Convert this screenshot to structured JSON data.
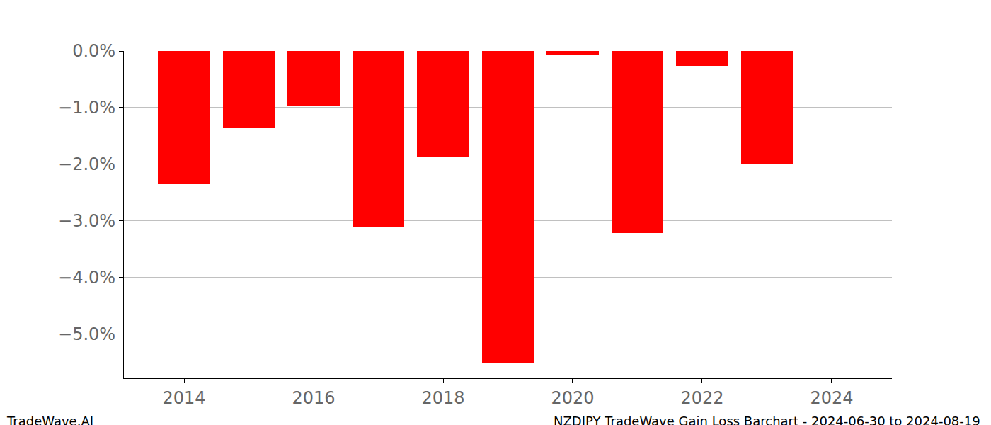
{
  "chart_data": {
    "type": "bar",
    "x": [
      2014,
      2015,
      2016,
      2017,
      2018,
      2019,
      2020,
      2021,
      2022,
      2023
    ],
    "values": [
      -2.35,
      -1.35,
      -0.97,
      -3.12,
      -1.86,
      -5.52,
      -0.08,
      -3.21,
      -0.26,
      -1.99
    ],
    "color": "#ff0000",
    "xlim": [
      2013.07,
      2024.93
    ],
    "xticks": [
      2014,
      2016,
      2018,
      2020,
      2022,
      2024
    ],
    "ylim": [
      -5.78,
      0
    ],
    "yticks": [
      {
        "value": 0,
        "label": "0.0%"
      },
      {
        "value": -1,
        "label": "−1.0%"
      },
      {
        "value": -2,
        "label": "−2.0%"
      },
      {
        "value": -3,
        "label": "−3.0%"
      },
      {
        "value": -4,
        "label": "−4.0%"
      },
      {
        "value": -5,
        "label": "−5.0%"
      }
    ],
    "grid": true,
    "annotations": [
      "TradeWave.AI",
      "NZDJPY TradeWave Gain Loss Barchart - 2024-06-30 to 2024-08-19"
    ]
  }
}
